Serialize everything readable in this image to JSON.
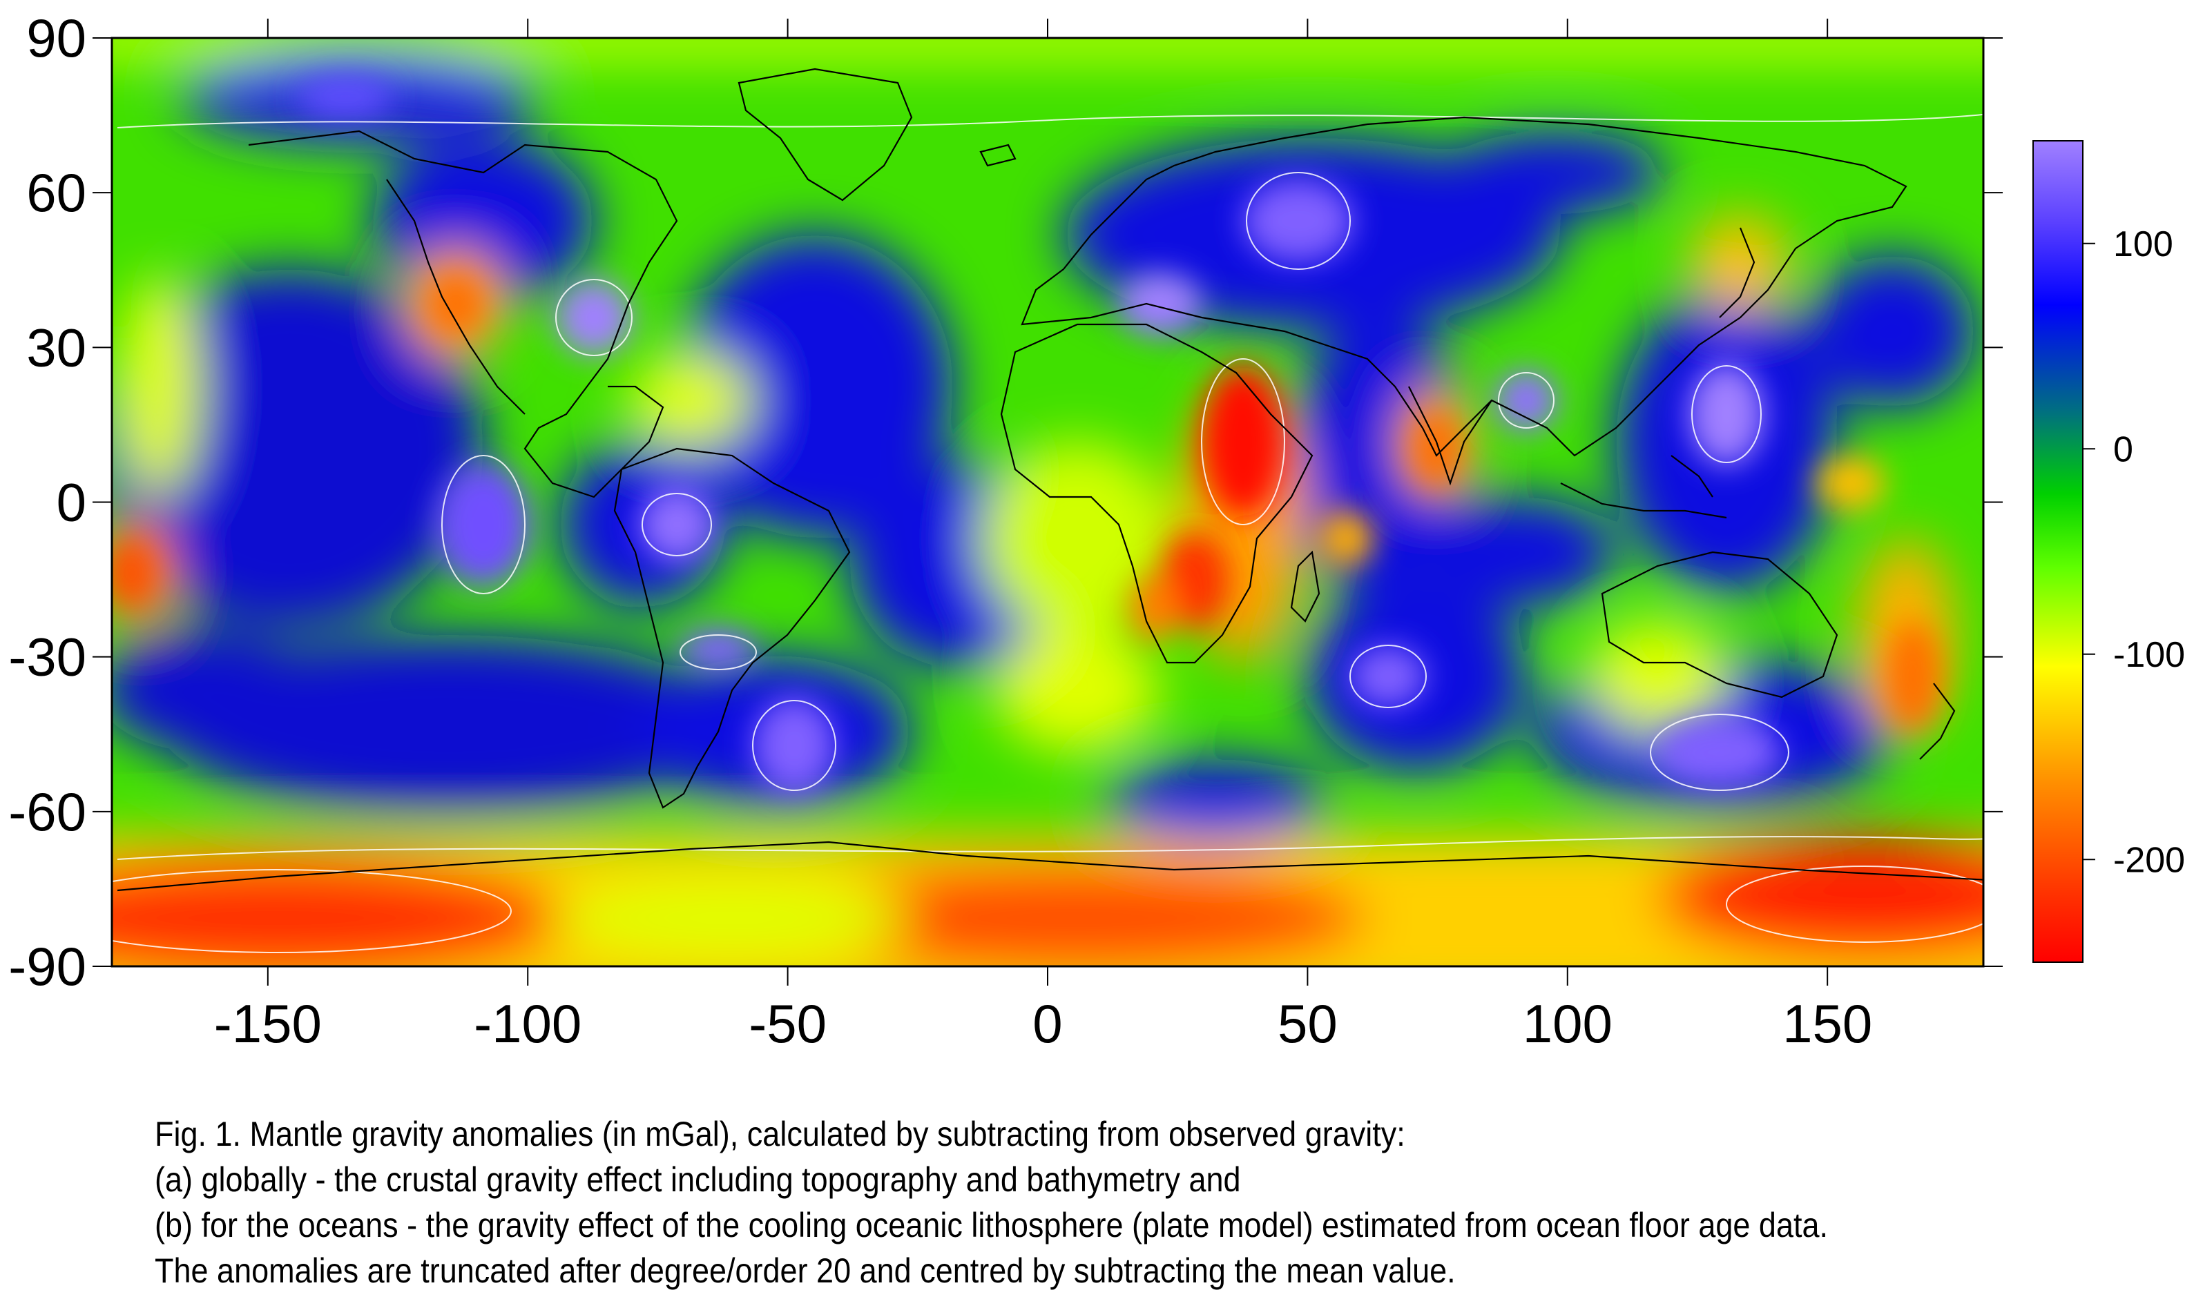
{
  "map": {
    "lon_range": [
      -180,
      180
    ],
    "lat_range": [
      -90,
      90
    ],
    "x_ticks": [
      "-150",
      "-100",
      "-50",
      "0",
      "50",
      "100",
      "150"
    ],
    "x_tick_values": [
      -150,
      -100,
      -50,
      0,
      50,
      100,
      150
    ],
    "y_ticks": [
      "90",
      "60",
      "30",
      "0",
      "-30",
      "-60",
      "-90"
    ],
    "y_tick_values": [
      90,
      60,
      30,
      0,
      -30,
      -60,
      -90
    ],
    "colorbar": {
      "labels": [
        "100",
        "0",
        "-100",
        "-200"
      ],
      "values": [
        100,
        0,
        -100,
        -200
      ],
      "range": [
        -250,
        150
      ],
      "colors": [
        "#ff0000",
        "#ff8000",
        "#ffff00",
        "#80ff00",
        "#00e000",
        "#00a060",
        "#0000ff",
        "#9070ff"
      ]
    },
    "colors": {
      "ocean_green": "#40e000",
      "anomaly_blue": "#1010e0",
      "anomaly_red": "#ff2000",
      "coastline": "#000000",
      "contour": "#ffffff"
    }
  },
  "caption": {
    "line1": "Fig. 1. Mantle gravity anomalies (in mGal), calculated by subtracting from observed gravity:",
    "line2": "(a) globally - the crustal gravity effect including topography and bathymetry and",
    "line3": "(b) for the oceans - the gravity effect of the cooling oceanic lithosphere (plate model) estimated from ocean floor age data.",
    "line4": "The anomalies are truncated after degree/order 20 and centred by subtracting the mean value."
  }
}
